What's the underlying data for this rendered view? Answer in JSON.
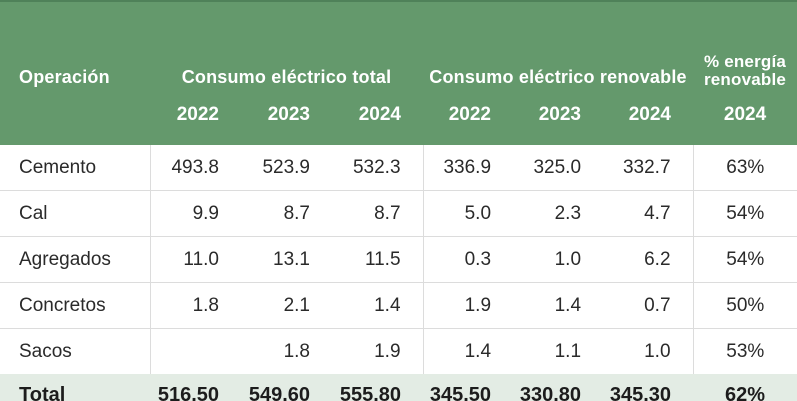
{
  "chart_data": {
    "type": "table",
    "header": {
      "operation": "Operación",
      "group_total": "Consumo eléctrico total",
      "group_renewable": "Consumo eléctrico renovable",
      "group_pct": "% energía renovable",
      "years": [
        "2022",
        "2023",
        "2024"
      ],
      "pct_year": "2024"
    },
    "rows": [
      {
        "name": "Cemento",
        "values": [
          "493.8",
          "523.9",
          "532.3",
          "336.9",
          "325.0",
          "332.7",
          "63%"
        ]
      },
      {
        "name": "Cal",
        "values": [
          "9.9",
          "8.7",
          "8.7",
          "5.0",
          "2.3",
          "4.7",
          "54%"
        ]
      },
      {
        "name": "Agregados",
        "values": [
          "11.0",
          "13.1",
          "11.5",
          "0.3",
          "1.0",
          "6.2",
          "54%"
        ]
      },
      {
        "name": "Concretos",
        "values": [
          "1.8",
          "2.1",
          "1.4",
          "1.9",
          "1.4",
          "0.7",
          "50%"
        ]
      },
      {
        "name": "Sacos",
        "values": [
          "",
          "1.8",
          "1.9",
          "1.4",
          "1.1",
          "1.0",
          "53%"
        ]
      }
    ],
    "total": {
      "name": "Total",
      "values": [
        "516.50",
        "549.60",
        "555.80",
        "345.50",
        "330.80",
        "345.30",
        "62%"
      ]
    }
  },
  "colors": {
    "header_green": "#64996C",
    "header_top_border": "#4F8159",
    "total_row_bg": "#E3ECE4",
    "grid_line": "#DCDCDC",
    "header_text": "#FFFFFF",
    "body_text": "#2A2A2A"
  }
}
